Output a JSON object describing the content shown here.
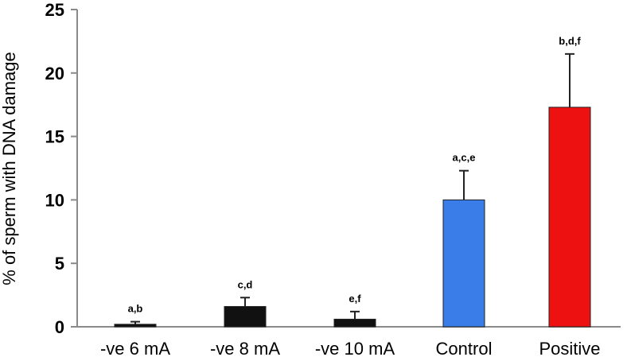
{
  "chart_data": {
    "type": "bar",
    "title": "",
    "xlabel": "",
    "ylabel": "% of sperm with DNA damage",
    "ylim": [
      0,
      25
    ],
    "yticks": [
      0,
      5,
      10,
      15,
      20,
      25
    ],
    "categories": [
      "-ve 6 mA",
      "-ve 8 mA",
      "-ve 10 mA",
      "Control",
      "Positive"
    ],
    "values": [
      0.2,
      1.6,
      0.6,
      10.0,
      17.3
    ],
    "errors": [
      0.2,
      0.7,
      0.6,
      2.3,
      4.2
    ],
    "annotations": [
      "a,b",
      "c,d",
      "e,f",
      "a,c,e",
      "b,d,f"
    ],
    "colors": [
      "#111111",
      "#111111",
      "#111111",
      "#3a7de8",
      "#ee1111"
    ],
    "grid": false,
    "legend": "none"
  }
}
